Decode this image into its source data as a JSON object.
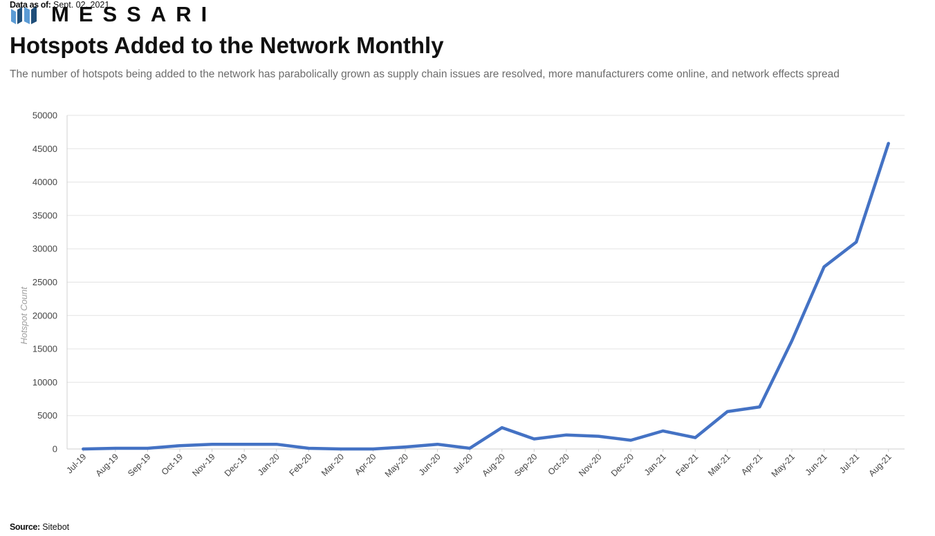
{
  "brand": {
    "name": "MESSARI",
    "logo_icon": "messari-bars-icon",
    "logo_colors": [
      "#5b9bd5",
      "#1f4e79"
    ]
  },
  "header": {
    "title": "Hotspots Added to the Network Monthly",
    "subtitle": "The number of hotspots being added to the network has parabolically grown as supply chain issues  are resolved, more manufacturers come online, and network effects spread"
  },
  "footer": {
    "data_as_of_label": "Data as of:",
    "data_as_of_value": " Sept. 02, 2021",
    "source_label": "Source:",
    "source_value": " Sitebot"
  },
  "chart_data": {
    "type": "line",
    "title": "Hotspots Added to the Network Monthly",
    "xlabel": "",
    "ylabel": "Hotspot Count",
    "ylim": [
      0,
      50000
    ],
    "yticks": [
      0,
      5000,
      10000,
      15000,
      20000,
      25000,
      30000,
      35000,
      40000,
      45000,
      50000
    ],
    "grid": true,
    "legend": "none",
    "line_color": "#4472c4",
    "categories": [
      "Jul-19",
      "Aug-19",
      "Sep-19",
      "Oct-19",
      "Nov-19",
      "Dec-19",
      "Jan-20",
      "Feb-20",
      "Mar-20",
      "Apr-20",
      "May-20",
      "Jun-20",
      "Jul-20",
      "Aug-20",
      "Sep-20",
      "Oct-20",
      "Nov-20",
      "Dec-20",
      "Jan-21",
      "Feb-21",
      "Mar-21",
      "Apr-21",
      "May-21",
      "Jun-21",
      "Jul-21",
      "Aug-21"
    ],
    "series": [
      {
        "values": [
          0,
          100,
          100,
          500,
          700,
          700,
          700,
          100,
          0,
          0,
          300,
          700,
          100,
          3200,
          1500,
          2100,
          1900,
          1300,
          2700,
          1700,
          5600,
          6300,
          16200,
          27300,
          31000,
          45800
        ]
      }
    ]
  }
}
